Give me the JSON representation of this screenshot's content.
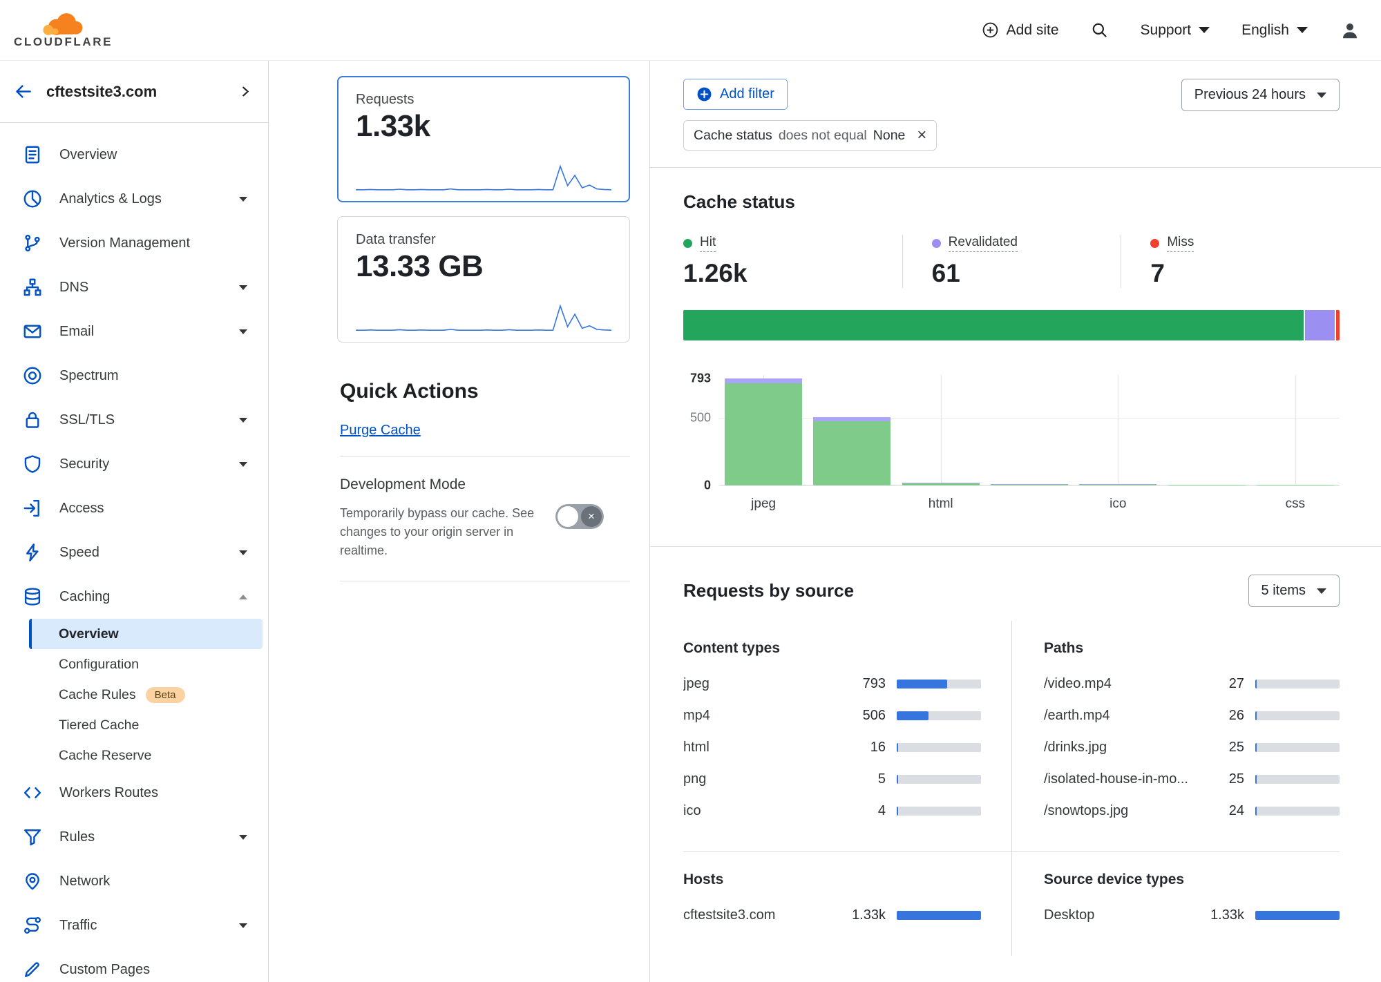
{
  "colors": {
    "accent": "#0051c3",
    "bar_fill": "#3575dd",
    "hit": "#23a55c",
    "hit_light": "#7ecb8a",
    "revalidated": "#9b8ff2",
    "revalidated_light": "#aba5f5",
    "miss": "#ee4130",
    "selected_card_border": "#3b7dd8",
    "sidebar_active_bg": "#d9eafc",
    "logo_orange": "#f6821f",
    "logo_orange_light": "#fbad41"
  },
  "header": {
    "logo_text": "CLOUDFLARE",
    "add_site_label": "Add site",
    "support_label": "Support",
    "language_label": "English"
  },
  "sidebar": {
    "site_name": "cftestsite3.com",
    "items": [
      {
        "icon": "overview",
        "label": "Overview"
      },
      {
        "icon": "analytics",
        "label": "Analytics & Logs",
        "chevron": "down"
      },
      {
        "icon": "version-management",
        "label": "Version Management"
      },
      {
        "icon": "dns",
        "label": "DNS",
        "chevron": "down"
      },
      {
        "icon": "email",
        "label": "Email",
        "chevron": "down"
      },
      {
        "icon": "spectrum",
        "label": "Spectrum"
      },
      {
        "icon": "ssl-tls",
        "label": "SSL/TLS",
        "chevron": "down"
      },
      {
        "icon": "security",
        "label": "Security",
        "chevron": "down"
      },
      {
        "icon": "access",
        "label": "Access"
      },
      {
        "icon": "speed",
        "label": "Speed",
        "chevron": "down"
      },
      {
        "icon": "caching",
        "label": "Caching",
        "chevron": "up"
      },
      {
        "label": "Overview",
        "sub": true,
        "active": true
      },
      {
        "label": "Configuration",
        "sub": true
      },
      {
        "label": "Cache Rules",
        "sub": true,
        "badge": "Beta"
      },
      {
        "label": "Tiered Cache",
        "sub": true
      },
      {
        "label": "Cache Reserve",
        "sub": true
      },
      {
        "icon": "workers-routes",
        "label": "Workers Routes"
      },
      {
        "icon": "rules",
        "label": "Rules",
        "chevron": "down"
      },
      {
        "icon": "network",
        "label": "Network"
      },
      {
        "icon": "traffic",
        "label": "Traffic",
        "chevron": "down"
      },
      {
        "icon": "custom-pages",
        "label": "Custom Pages"
      }
    ]
  },
  "summary_cards": [
    {
      "label": "Requests",
      "value": "1.33k",
      "selected": true
    },
    {
      "label": "Data transfer",
      "value": "13.33 GB",
      "selected": false
    }
  ],
  "quick_actions": {
    "title": "Quick Actions",
    "purge_cache_label": "Purge Cache",
    "dev_mode": {
      "title": "Development Mode",
      "description": "Temporarily bypass our cache. See changes to your origin server in realtime.",
      "enabled": false
    }
  },
  "filter_bar": {
    "add_filter_label": "Add filter",
    "chip": {
      "field": "Cache status",
      "operator": "does not equal",
      "value": "None"
    },
    "time_range": "Previous 24 hours"
  },
  "cache_status": {
    "title": "Cache status",
    "legend": [
      {
        "label": "Hit",
        "value": "1.26k",
        "color_key": "hit"
      },
      {
        "label": "Revalidated",
        "value": "61",
        "color_key": "revalidated"
      },
      {
        "label": "Miss",
        "value": "7",
        "color_key": "miss"
      }
    ]
  },
  "chart_data": [
    {
      "id": "requests_sparkline",
      "type": "line",
      "title": "Requests",
      "summary_value": "1.33k",
      "x": "previous 24 hours",
      "values": [
        3,
        3,
        4,
        3,
        3,
        3,
        5,
        3,
        3,
        4,
        3,
        3,
        3,
        6,
        3,
        3,
        3,
        3,
        4,
        3,
        3,
        5,
        3,
        3,
        3,
        4,
        3,
        3,
        88,
        18,
        55,
        10,
        20,
        6,
        4,
        3
      ]
    },
    {
      "id": "data_transfer_sparkline",
      "type": "line",
      "title": "Data transfer",
      "summary_value": "13.33 GB",
      "x": "previous 24 hours",
      "values": [
        2,
        2,
        3,
        2,
        2,
        2,
        4,
        2,
        2,
        3,
        2,
        2,
        2,
        5,
        2,
        2,
        2,
        2,
        3,
        2,
        2,
        4,
        2,
        2,
        2,
        3,
        2,
        2,
        90,
        15,
        60,
        9,
        18,
        5,
        3,
        2
      ]
    },
    {
      "id": "cache_status_share",
      "type": "bar",
      "representation": "stacked_horizontal",
      "title": "Cache status",
      "categories": [
        "Hit",
        "Revalidated",
        "Miss"
      ],
      "values": [
        1260,
        61,
        7
      ],
      "display_values": [
        "1.26k",
        "61",
        "7"
      ],
      "color_keys": [
        "hit",
        "revalidated",
        "miss"
      ]
    },
    {
      "id": "cache_status_by_content_type",
      "type": "bar",
      "representation": "stacked_vertical",
      "title": "Cache status by content type",
      "x_tick_labels": [
        "jpeg",
        "",
        "html",
        "",
        "ico",
        "",
        "css"
      ],
      "series": [
        {
          "name": "Hit",
          "values": [
            758,
            478,
            15,
            4,
            3,
            2,
            1
          ],
          "color_key": "hit_light"
        },
        {
          "name": "Revalidated",
          "values": [
            35,
            28,
            1,
            1,
            1,
            0,
            0
          ],
          "color_key": "revalidated_light"
        }
      ],
      "yticks": [
        0,
        500,
        793
      ],
      "ylim": [
        0,
        820
      ],
      "grid": "vertical lines at labeled categories, horizontal at 500"
    }
  ],
  "requests_by_source": {
    "title": "Requests by source",
    "items_select": "5 items",
    "scale_max": 1330,
    "tables": [
      {
        "title": "Content types",
        "rows": [
          {
            "label": "jpeg",
            "value": "793",
            "num": 793
          },
          {
            "label": "mp4",
            "value": "506",
            "num": 506
          },
          {
            "label": "html",
            "value": "16",
            "num": 16
          },
          {
            "label": "png",
            "value": "5",
            "num": 5
          },
          {
            "label": "ico",
            "value": "4",
            "num": 4
          }
        ]
      },
      {
        "title": "Paths",
        "rows": [
          {
            "label": "/video.mp4",
            "value": "27",
            "num": 27
          },
          {
            "label": "/earth.mp4",
            "value": "26",
            "num": 26
          },
          {
            "label": "/drinks.jpg",
            "value": "25",
            "num": 25
          },
          {
            "label": "/isolated-house-in-mo...",
            "value": "25",
            "num": 25
          },
          {
            "label": "/snowtops.jpg",
            "value": "24",
            "num": 24
          }
        ]
      },
      {
        "title": "Hosts",
        "rows": [
          {
            "label": "cftestsite3.com",
            "value": "1.33k",
            "num": 1330
          }
        ]
      },
      {
        "title": "Source device types",
        "rows": [
          {
            "label": "Desktop",
            "value": "1.33k",
            "num": 1330
          }
        ]
      }
    ]
  }
}
